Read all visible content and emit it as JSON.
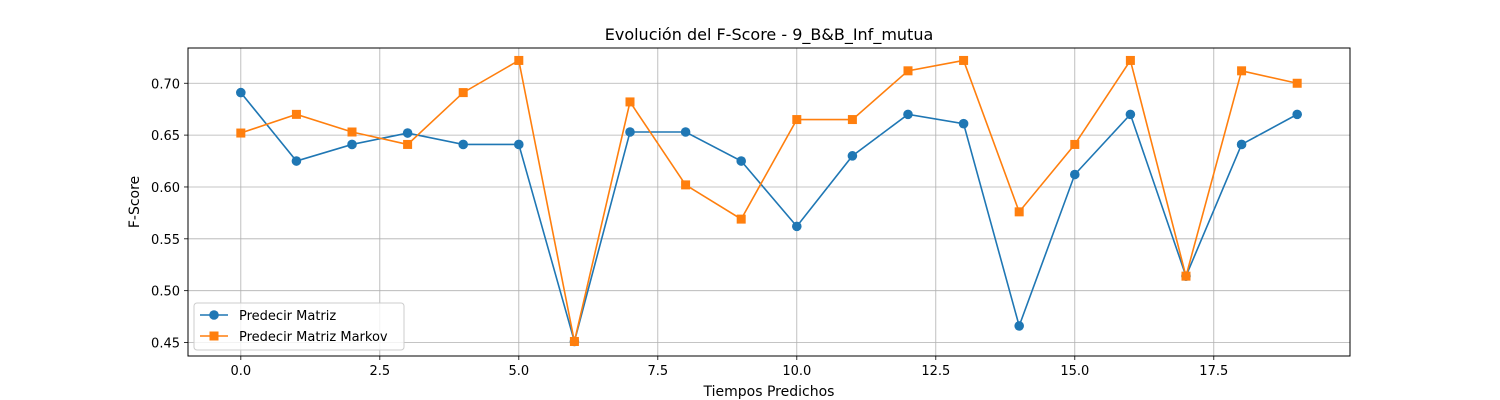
{
  "chart_data": {
    "type": "line",
    "title": "Evolución del F-Score - 9_B&B_Inf_mutua",
    "xlabel": "Tiempos Predichos",
    "ylabel": "F-Score",
    "xlim": [
      -0.95,
      19.95
    ],
    "ylim": [
      0.437,
      0.734
    ],
    "x_ticks": [
      0.0,
      2.5,
      5.0,
      7.5,
      10.0,
      12.5,
      15.0,
      17.5
    ],
    "x_tick_labels": [
      "0.0",
      "2.5",
      "5.0",
      "7.5",
      "10.0",
      "12.5",
      "15.0",
      "17.5"
    ],
    "y_ticks": [
      0.45,
      0.5,
      0.55,
      0.6,
      0.65,
      0.7
    ],
    "y_tick_labels": [
      "0.45",
      "0.50",
      "0.55",
      "0.60",
      "0.65",
      "0.70"
    ],
    "grid": true,
    "legend_position": "lower-left",
    "x": [
      0,
      1,
      2,
      3,
      4,
      5,
      6,
      7,
      8,
      9,
      10,
      11,
      12,
      13,
      14,
      15,
      16,
      17,
      18,
      19
    ],
    "series": [
      {
        "name": "Predecir Matriz",
        "color": "#1f77b4",
        "marker": "circle",
        "values": [
          0.691,
          0.625,
          0.641,
          0.652,
          0.641,
          0.641,
          0.451,
          0.653,
          0.653,
          0.625,
          0.562,
          0.63,
          0.67,
          0.661,
          0.466,
          0.612,
          0.67,
          0.514,
          0.641,
          0.67
        ]
      },
      {
        "name": "Predecir Matriz Markov",
        "color": "#ff7f0e",
        "marker": "square",
        "values": [
          0.652,
          0.67,
          0.653,
          0.641,
          0.691,
          0.722,
          0.451,
          0.682,
          0.602,
          0.569,
          0.665,
          0.665,
          0.712,
          0.722,
          0.576,
          0.641,
          0.722,
          0.514,
          0.712,
          0.7
        ]
      }
    ]
  }
}
